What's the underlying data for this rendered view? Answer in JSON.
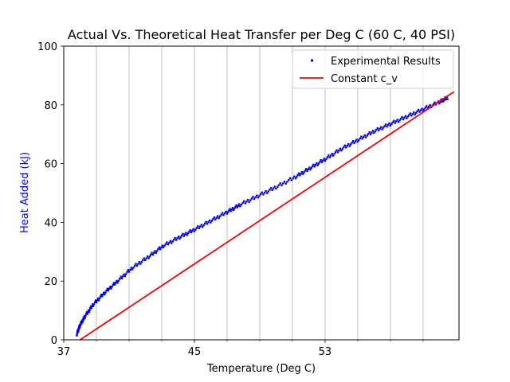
{
  "chart_data": {
    "type": "scatter",
    "title": "Actual Vs. Theoretical Heat Transfer per Deg C (60 C, 40 PSI)",
    "xlabel": "Temperature (Deg C)",
    "ylabel": "Heat Added (kJ)",
    "xlim": [
      37,
      61.2
    ],
    "ylim": [
      0,
      100
    ],
    "x_ticks": [
      37,
      45,
      53
    ],
    "x_minor_ticks": [
      39,
      41,
      43,
      47,
      49,
      51,
      55,
      57,
      59
    ],
    "y_ticks": [
      0,
      20,
      40,
      60,
      80,
      100
    ],
    "grid": "vertical",
    "legend": "top-right",
    "colors": {
      "experimental": "#0000ee",
      "theoretical": "#ff0000",
      "ylabel": "#0000ff",
      "grid": "#b0b0b0"
    },
    "series": [
      {
        "name": "Experimental Results",
        "kind": "scatter",
        "color": "#0000ee",
        "x": [
          37.8,
          38.0,
          38.3,
          38.8,
          39.5,
          40.3,
          41.2,
          42.2,
          43.1,
          44.1,
          45.0,
          46.0,
          47.0,
          47.8,
          48.9,
          50.0,
          51.2,
          52.1,
          53.0,
          54.0,
          55.0,
          56.0,
          57.0,
          58.0,
          59.0,
          60.0,
          60.5
        ],
        "y": [
          2.0,
          5.0,
          8.0,
          12.0,
          16.0,
          20.0,
          24.5,
          28.3,
          32.0,
          35.0,
          37.5,
          40.5,
          43.5,
          46.0,
          49.0,
          52.0,
          55.5,
          58.5,
          61.5,
          65.0,
          68.0,
          71.0,
          73.5,
          76.0,
          78.5,
          81.0,
          82.5
        ]
      },
      {
        "name": "Constant c_v",
        "kind": "line",
        "color": "#ff0000",
        "x": [
          38.0,
          60.9
        ],
        "y": [
          0.0,
          84.5
        ]
      }
    ]
  }
}
